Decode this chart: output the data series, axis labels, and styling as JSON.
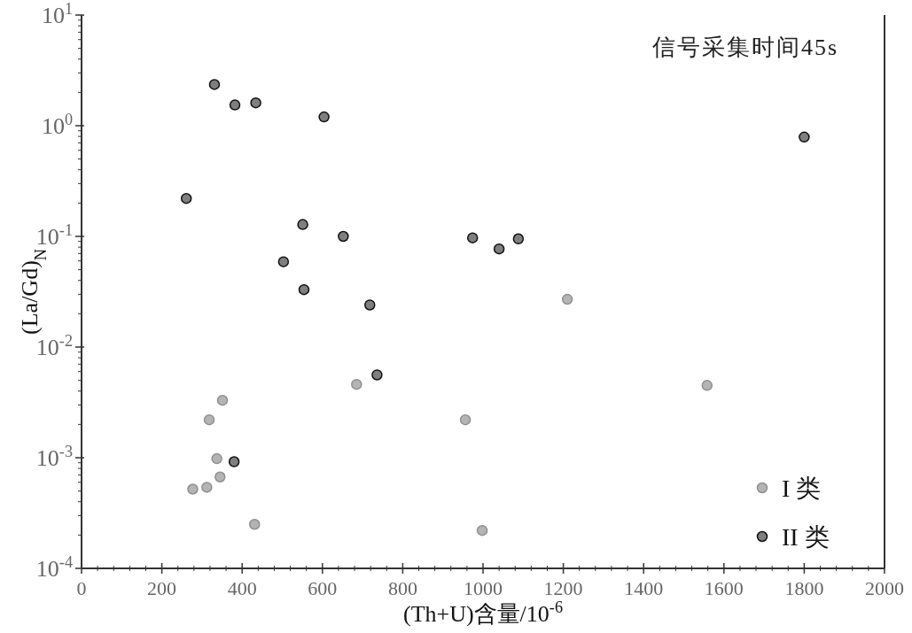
{
  "chart_data": {
    "type": "scatter",
    "xlabel": "(Th+U)含量/10$^{-6}$",
    "ylabel": "(La/Gd)$_{N}$",
    "annotations": [
      "信号采集时间45s"
    ],
    "xlim": [
      0,
      2000
    ],
    "xticks": [
      0,
      200,
      400,
      600,
      800,
      1000,
      1200,
      1400,
      1600,
      1800,
      2000
    ],
    "ylim": [
      0.0001,
      10
    ],
    "yticks": [
      {
        "value": 0.0001,
        "label": "10$^{-4}$"
      },
      {
        "value": 0.001,
        "label": "10$^{-3}$"
      },
      {
        "value": 0.01,
        "label": "10$^{-2}$"
      },
      {
        "value": 0.1,
        "label": "10$^{-1}$"
      },
      {
        "value": 1,
        "label": "10$^{0}$"
      },
      {
        "value": 10,
        "label": "10$^{1}$"
      }
    ],
    "log": "y",
    "legend": "bottom right",
    "marker": "circle",
    "series": [
      {
        "name": "I 类",
        "color": "#b4b4b4",
        "x": [
          685,
          351,
          318,
          956,
          337,
          345,
          312,
          277,
          431,
          998,
          1558,
          1210
        ],
        "values": [
          0.0046,
          0.0033,
          0.0022,
          0.0022,
          0.00098,
          0.00067,
          0.00054,
          0.00052,
          0.00025,
          0.00022,
          0.0045,
          0.027
        ]
      },
      {
        "name": "II 类",
        "color": "#7f7f7f",
        "x": [
          331,
          382,
          434,
          604,
          261,
          551,
          652,
          503,
          554,
          718,
          974,
          1040,
          1088,
          1800,
          736,
          380
        ],
        "values": [
          2.36,
          1.54,
          1.61,
          1.2,
          0.22,
          0.128,
          0.1,
          0.059,
          0.033,
          0.024,
          0.097,
          0.077,
          0.095,
          0.79,
          0.0056,
          0.00092
        ]
      }
    ]
  }
}
